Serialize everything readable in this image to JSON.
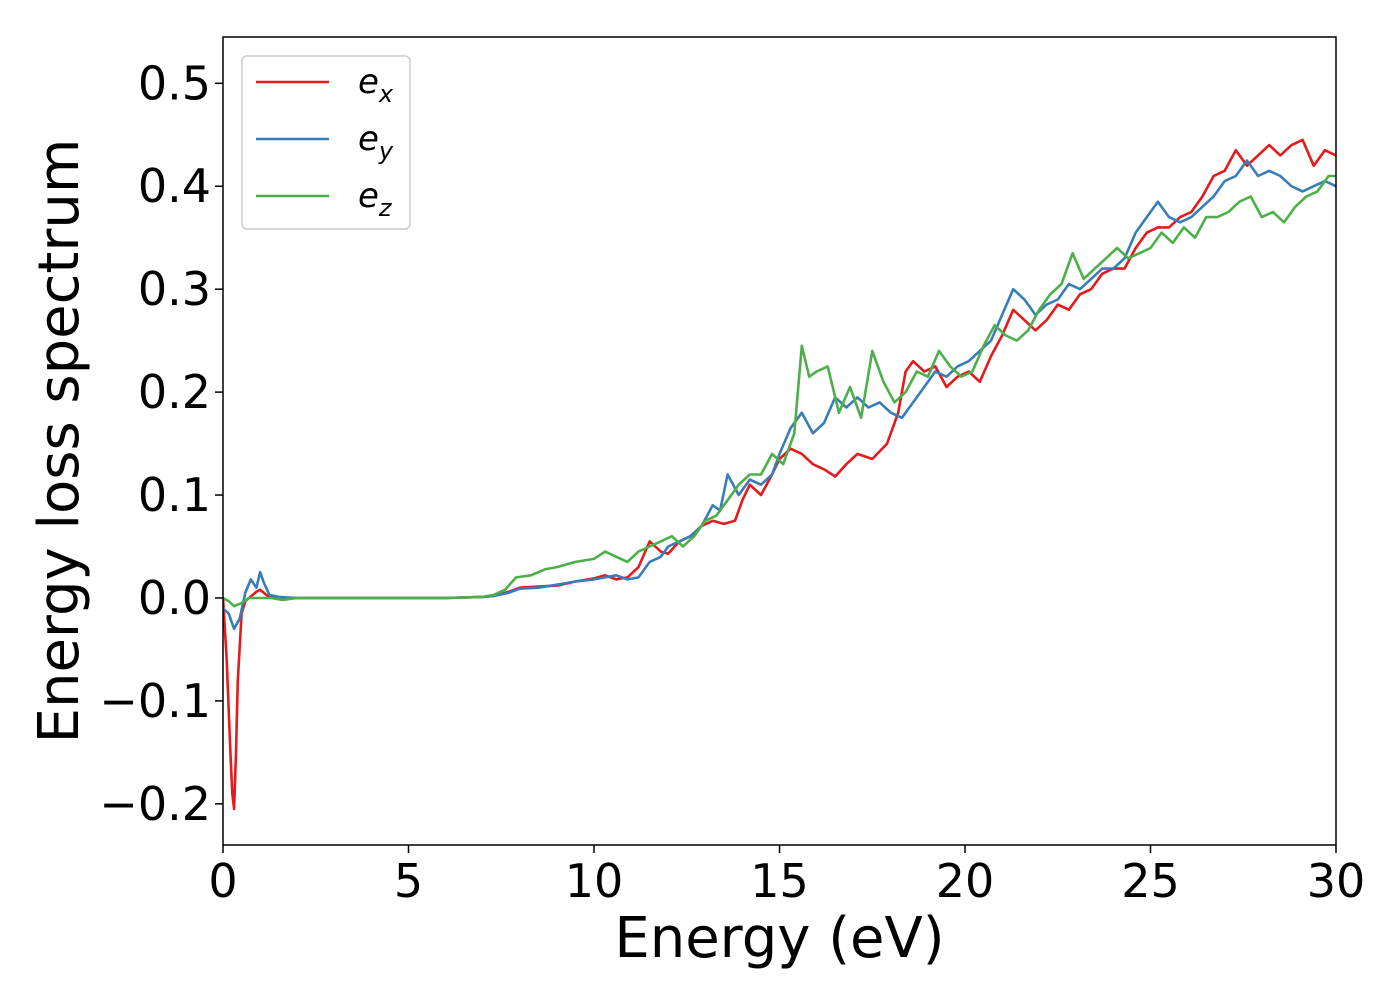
{
  "chart_data": {
    "type": "line",
    "xlabel": "Energy (eV)",
    "ylabel": "Energy loss spectrum",
    "xlim": [
      0,
      30
    ],
    "ylim": [
      -0.24,
      0.545
    ],
    "xticks": [
      0,
      5,
      10,
      15,
      20,
      25,
      30
    ],
    "xtick_labels": [
      "0",
      "5",
      "10",
      "15",
      "20",
      "25",
      "30"
    ],
    "yticks": [
      -0.2,
      -0.1,
      0.0,
      0.1,
      0.2,
      0.3,
      0.4,
      0.5
    ],
    "ytick_labels": [
      "−0.2",
      "−0.1",
      "0.0",
      "0.1",
      "0.2",
      "0.3",
      "0.4",
      "0.5"
    ],
    "grid": false,
    "legend_position": "top-left",
    "series": [
      {
        "name": "e",
        "subscript": "x",
        "color": "#e41a1c",
        "x": [
          0,
          0.1,
          0.2,
          0.25,
          0.3,
          0.35,
          0.4,
          0.5,
          0.6,
          0.7,
          0.8,
          0.9,
          1.0,
          1.1,
          1.2,
          1.4,
          1.6,
          2.0,
          3.0,
          4.0,
          5.0,
          6.0,
          7.0,
          7.3,
          7.7,
          8.0,
          8.5,
          9.0,
          9.5,
          10.0,
          10.3,
          10.6,
          10.9,
          11.2,
          11.5,
          11.8,
          12.0,
          12.3,
          12.6,
          12.9,
          13.2,
          13.5,
          13.8,
          14.0,
          14.2,
          14.5,
          14.8,
          15.0,
          15.3,
          15.6,
          15.9,
          16.2,
          16.5,
          16.8,
          17.1,
          17.5,
          17.9,
          18.2,
          18.4,
          18.6,
          18.9,
          19.2,
          19.5,
          19.8,
          20.1,
          20.4,
          20.7,
          21.0,
          21.3,
          21.6,
          21.9,
          22.2,
          22.5,
          22.8,
          23.1,
          23.4,
          23.7,
          24.0,
          24.3,
          24.6,
          24.9,
          25.2,
          25.5,
          25.8,
          26.1,
          26.4,
          26.7,
          27.0,
          27.3,
          27.6,
          27.9,
          28.2,
          28.5,
          28.8,
          29.1,
          29.4,
          29.7,
          30.0
        ],
        "y": [
          0.0,
          -0.06,
          -0.15,
          -0.19,
          -0.205,
          -0.15,
          -0.08,
          -0.015,
          -0.003,
          0.0,
          0.003,
          0.006,
          0.008,
          0.005,
          0.002,
          0.0,
          0.0,
          0.0,
          0.0,
          0.0,
          0.0,
          0.0,
          0.001,
          0.002,
          0.006,
          0.01,
          0.011,
          0.012,
          0.016,
          0.019,
          0.022,
          0.018,
          0.02,
          0.03,
          0.055,
          0.045,
          0.043,
          0.055,
          0.06,
          0.07,
          0.075,
          0.072,
          0.075,
          0.095,
          0.11,
          0.1,
          0.12,
          0.135,
          0.145,
          0.14,
          0.13,
          0.125,
          0.118,
          0.13,
          0.14,
          0.135,
          0.15,
          0.18,
          0.22,
          0.23,
          0.22,
          0.225,
          0.205,
          0.215,
          0.22,
          0.21,
          0.235,
          0.255,
          0.28,
          0.27,
          0.26,
          0.27,
          0.285,
          0.28,
          0.295,
          0.3,
          0.315,
          0.32,
          0.32,
          0.34,
          0.355,
          0.36,
          0.36,
          0.37,
          0.375,
          0.39,
          0.41,
          0.415,
          0.435,
          0.42,
          0.43,
          0.44,
          0.43,
          0.44,
          0.445,
          0.42,
          0.435,
          0.43
        ]
      },
      {
        "name": "e",
        "subscript": "y",
        "color": "#377eb8",
        "x": [
          0,
          0.15,
          0.3,
          0.45,
          0.6,
          0.75,
          0.9,
          1.0,
          1.1,
          1.25,
          1.5,
          2.0,
          3.0,
          4.0,
          5.0,
          6.0,
          7.0,
          7.3,
          7.7,
          8.0,
          8.5,
          9.0,
          9.5,
          10.0,
          10.3,
          10.6,
          10.9,
          11.2,
          11.5,
          11.8,
          12.0,
          12.3,
          12.6,
          12.9,
          13.2,
          13.4,
          13.6,
          13.9,
          14.2,
          14.5,
          14.8,
          15.0,
          15.3,
          15.6,
          15.9,
          16.2,
          16.5,
          16.8,
          17.1,
          17.4,
          17.7,
          18.0,
          18.3,
          18.6,
          18.9,
          19.2,
          19.5,
          19.8,
          20.1,
          20.4,
          20.7,
          21.0,
          21.3,
          21.6,
          21.9,
          22.2,
          22.5,
          22.8,
          23.1,
          23.4,
          23.7,
          24.0,
          24.3,
          24.6,
          24.9,
          25.2,
          25.5,
          25.8,
          26.1,
          26.4,
          26.7,
          27.0,
          27.3,
          27.6,
          27.9,
          28.2,
          28.5,
          28.8,
          29.1,
          29.4,
          29.7,
          30.0
        ],
        "y": [
          -0.01,
          -0.015,
          -0.03,
          -0.02,
          0.005,
          0.018,
          0.01,
          0.025,
          0.015,
          0.003,
          0.001,
          0.0,
          0.0,
          0.0,
          0.0,
          0.0,
          0.001,
          0.002,
          0.005,
          0.009,
          0.01,
          0.013,
          0.016,
          0.018,
          0.02,
          0.022,
          0.018,
          0.02,
          0.035,
          0.04,
          0.05,
          0.055,
          0.06,
          0.07,
          0.09,
          0.085,
          0.12,
          0.1,
          0.115,
          0.11,
          0.12,
          0.14,
          0.165,
          0.18,
          0.16,
          0.17,
          0.195,
          0.185,
          0.195,
          0.185,
          0.19,
          0.18,
          0.175,
          0.19,
          0.205,
          0.22,
          0.215,
          0.225,
          0.23,
          0.24,
          0.25,
          0.275,
          0.3,
          0.29,
          0.275,
          0.285,
          0.29,
          0.305,
          0.3,
          0.31,
          0.32,
          0.32,
          0.33,
          0.355,
          0.37,
          0.385,
          0.37,
          0.365,
          0.37,
          0.38,
          0.39,
          0.405,
          0.41,
          0.425,
          0.41,
          0.415,
          0.41,
          0.4,
          0.395,
          0.4,
          0.405,
          0.4
        ]
      },
      {
        "name": "e",
        "subscript": "z",
        "color": "#4daf4a",
        "x": [
          0,
          0.15,
          0.3,
          0.5,
          0.7,
          1.0,
          1.3,
          1.6,
          2.0,
          3.0,
          4.0,
          5.0,
          6.0,
          7.0,
          7.3,
          7.6,
          7.9,
          8.3,
          8.7,
          9.0,
          9.5,
          10.0,
          10.3,
          10.6,
          10.9,
          11.2,
          11.5,
          11.8,
          12.1,
          12.4,
          12.7,
          13.0,
          13.3,
          13.6,
          13.9,
          14.2,
          14.5,
          14.8,
          15.1,
          15.4,
          15.6,
          15.8,
          16.0,
          16.3,
          16.6,
          16.9,
          17.2,
          17.5,
          17.8,
          18.1,
          18.4,
          18.7,
          19.0,
          19.3,
          19.6,
          19.9,
          20.2,
          20.5,
          20.8,
          21.1,
          21.4,
          21.7,
          22.0,
          22.3,
          22.6,
          22.9,
          23.2,
          23.5,
          23.8,
          24.1,
          24.4,
          24.7,
          25.0,
          25.3,
          25.6,
          25.9,
          26.2,
          26.5,
          26.8,
          27.1,
          27.4,
          27.7,
          28.0,
          28.3,
          28.6,
          28.9,
          29.2,
          29.5,
          29.8,
          30.0
        ],
        "y": [
          0.0,
          -0.003,
          -0.008,
          -0.005,
          0.0,
          0.0,
          0.0,
          -0.002,
          0.0,
          0.0,
          0.0,
          0.0,
          0.0,
          0.001,
          0.003,
          0.008,
          0.02,
          0.022,
          0.028,
          0.03,
          0.035,
          0.038,
          0.045,
          0.04,
          0.035,
          0.045,
          0.05,
          0.055,
          0.06,
          0.05,
          0.06,
          0.075,
          0.08,
          0.095,
          0.11,
          0.12,
          0.12,
          0.14,
          0.13,
          0.16,
          0.245,
          0.215,
          0.22,
          0.225,
          0.18,
          0.205,
          0.175,
          0.24,
          0.21,
          0.19,
          0.2,
          0.22,
          0.215,
          0.24,
          0.225,
          0.215,
          0.22,
          0.245,
          0.265,
          0.255,
          0.25,
          0.26,
          0.28,
          0.295,
          0.305,
          0.335,
          0.31,
          0.32,
          0.33,
          0.34,
          0.33,
          0.335,
          0.34,
          0.355,
          0.345,
          0.36,
          0.35,
          0.37,
          0.37,
          0.375,
          0.385,
          0.39,
          0.37,
          0.375,
          0.365,
          0.38,
          0.39,
          0.395,
          0.41,
          0.41
        ]
      }
    ]
  }
}
